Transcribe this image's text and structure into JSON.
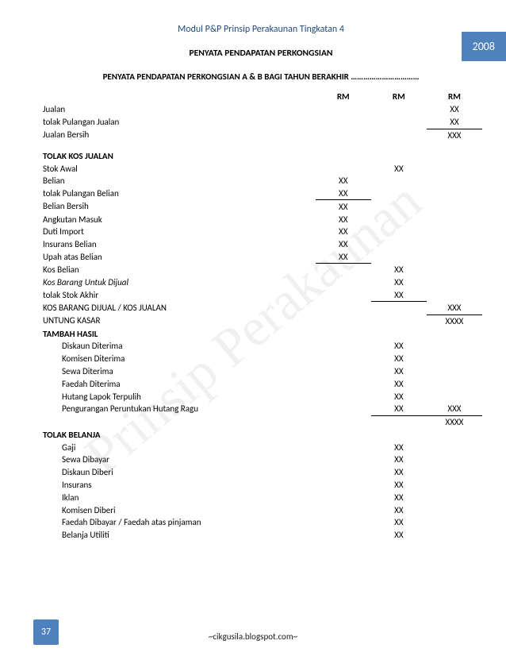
{
  "watermark_text": "Prinsip Perakaunan",
  "header": {
    "title": "Modul P&P Prinsip Perakaunan Tingkatan 4",
    "year": "2008"
  },
  "section_title": "PENYATA PENDAPATAN PERKONGSIAN",
  "subtitle": "PENYATA PENDAPATAN PERKONGSIAN A & B BAGI TAHUN BERAKHIR ……………………………",
  "cols": {
    "c1": "RM",
    "c2": "RM",
    "c3": "RM"
  },
  "rows": [
    {
      "label": "Jualan",
      "c3": "XX"
    },
    {
      "label": "tolak Pulangan Jualan",
      "c3": "XX",
      "u3": true
    },
    {
      "label": "Jualan Bersih",
      "c3": "XXX"
    },
    {
      "spacer": true
    },
    {
      "label": "TOLAK KOS JUALAN",
      "bold": true
    },
    {
      "label": "Stok Awal",
      "c2": "XX"
    },
    {
      "label": "Belian",
      "c1": "XX"
    },
    {
      "label": "tolak Pulangan Belian",
      "c1": "XX",
      "u1": true
    },
    {
      "label": "Belian Bersih",
      "c1": "XX"
    },
    {
      "label": "Angkutan Masuk",
      "c1": "XX"
    },
    {
      "label": "Duti Import",
      "c1": "XX"
    },
    {
      "label": "Insurans Belian",
      "c1": "XX"
    },
    {
      "label": "Upah atas Belian",
      "c1": "XX",
      "u1": true
    },
    {
      "label": "Kos Belian",
      "c2": "XX"
    },
    {
      "label": "Kos Barang Untuk Dijual",
      "italic": true,
      "c2": "XX"
    },
    {
      "label": "tolak Stok Akhir",
      "c2": "XX",
      "u2": true
    },
    {
      "label": "KOS BARANG DIJUAL / KOS JUALAN",
      "c3": "XXX",
      "u3": true
    },
    {
      "label": "UNTUNG KASAR",
      "c3": "XXXX"
    },
    {
      "label": "TAMBAH HASIL",
      "bold": true
    },
    {
      "label": "Diskaun Diterima",
      "indent": true,
      "c2": "XX"
    },
    {
      "label": "Komisen Diterima",
      "indent": true,
      "c2": "XX"
    },
    {
      "label": "Sewa Diterima",
      "indent": true,
      "c2": "XX"
    },
    {
      "label": "Faedah Diterima",
      "indent": true,
      "c2": "XX"
    },
    {
      "label": "Hutang Lapok Terpulih",
      "indent": true,
      "c2": "XX"
    },
    {
      "label": "Pengurangan Peruntukan Hutang Ragu",
      "indent": true,
      "c2": "XX",
      "u2": true,
      "c3": "XXX",
      "u3": true
    },
    {
      "label": "",
      "c3": "XXXX"
    },
    {
      "label": "TOLAK BELANJA",
      "bold": true
    },
    {
      "label": "Gaji",
      "indent": true,
      "c2": "XX"
    },
    {
      "label": "Sewa Dibayar",
      "indent": true,
      "c2": "XX"
    },
    {
      "label": "Diskaun Diberi",
      "indent": true,
      "c2": "XX"
    },
    {
      "label": "Insurans",
      "indent": true,
      "c2": "XX"
    },
    {
      "label": "Iklan",
      "indent": true,
      "c2": "XX"
    },
    {
      "label": "Komisen Diberi",
      "indent": true,
      "c2": "XX"
    },
    {
      "label": "Faedah Dibayar / Faedah atas pinjaman",
      "indent": true,
      "c2": "XX"
    },
    {
      "label": "Belanja Utiliti",
      "indent": true,
      "c2": "XX"
    }
  ],
  "footer": {
    "source": "~cikgusila.blogspot.com~",
    "page": "37"
  }
}
